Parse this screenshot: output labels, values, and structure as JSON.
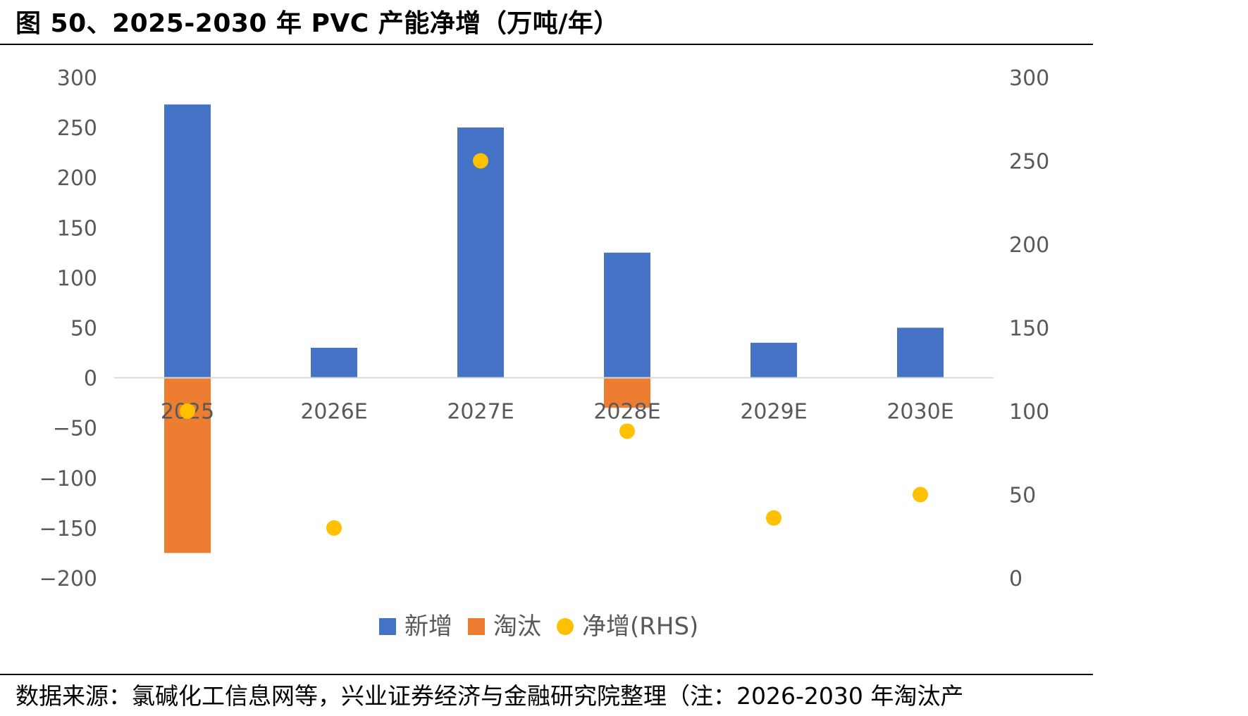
{
  "title": "图 50、2025-2030 年 PVC 产能净增（万吨/年）",
  "source": "数据来源：氯碱化工信息网等，兴业证券经济与金融研究院整理（注：2026-2030 年淘汰产",
  "chart_data": {
    "type": "bar",
    "categories": [
      "2025",
      "2026E",
      "2027E",
      "2028E",
      "2029E",
      "2030E"
    ],
    "series": [
      {
        "name": "新增",
        "type": "bar",
        "axis": "left",
        "color": "#4472C4",
        "values": [
          273,
          30,
          250,
          125,
          35,
          50
        ]
      },
      {
        "name": "淘汰",
        "type": "bar",
        "axis": "left",
        "color": "#ED7D31",
        "values": [
          -175,
          0,
          0,
          -30,
          0,
          0
        ]
      },
      {
        "name": "净增(RHS)",
        "type": "scatter",
        "axis": "right",
        "color": "#FFC000",
        "values": [
          100,
          30,
          250,
          88,
          36,
          50
        ]
      }
    ],
    "yleft": {
      "lim": [
        -200,
        300
      ],
      "ticks": [
        "300",
        "250",
        "200",
        "150",
        "100",
        "50",
        "0",
        "−50",
        "−100",
        "−150",
        "−200"
      ]
    },
    "yright": {
      "lim": [
        0,
        300
      ],
      "ticks": [
        "300",
        "250",
        "200",
        "150",
        "100",
        "50",
        "0"
      ]
    },
    "legend": "bottom",
    "grid": false
  }
}
